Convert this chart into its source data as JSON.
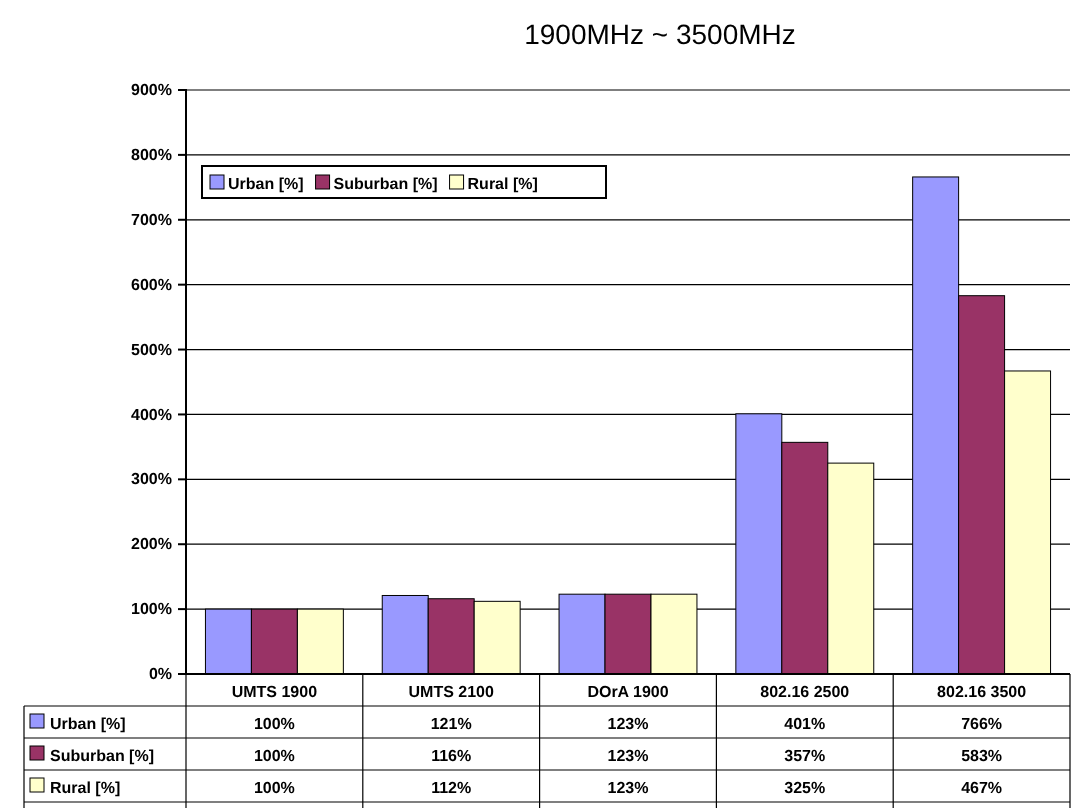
{
  "chart_data": {
    "type": "bar",
    "title": "1900MHz ~ 3500MHz",
    "categories": [
      "UMTS 1900",
      "UMTS 2100",
      "DOrA 1900",
      "802.16 2500",
      "802.16 3500"
    ],
    "series": [
      {
        "name": "Urban [%]",
        "color": "#9999ff",
        "values": [
          100,
          121,
          123,
          401,
          766
        ],
        "value_labels": [
          "100%",
          "121%",
          "123%",
          "401%",
          "766%"
        ]
      },
      {
        "name": "Suburban [%]",
        "color": "#993366",
        "values": [
          100,
          116,
          123,
          357,
          583
        ],
        "value_labels": [
          "100%",
          "116%",
          "123%",
          "357%",
          "583%"
        ]
      },
      {
        "name": "Rural [%]",
        "color": "#ffffcc",
        "values": [
          100,
          112,
          123,
          325,
          467
        ],
        "value_labels": [
          "100%",
          "112%",
          "123%",
          "325%",
          "467%"
        ]
      }
    ],
    "ylim": [
      0,
      900
    ],
    "yticks": [
      {
        "value": 0,
        "label": "0%"
      },
      {
        "value": 100,
        "label": "100%"
      },
      {
        "value": 200,
        "label": "200%"
      },
      {
        "value": 300,
        "label": "300%"
      },
      {
        "value": 400,
        "label": "400%"
      },
      {
        "value": 500,
        "label": "500%"
      },
      {
        "value": 600,
        "label": "600%"
      },
      {
        "value": 700,
        "label": "700%"
      },
      {
        "value": 800,
        "label": "800%"
      },
      {
        "value": 900,
        "label": "900%"
      }
    ],
    "grid": "y",
    "legend": "top left"
  }
}
